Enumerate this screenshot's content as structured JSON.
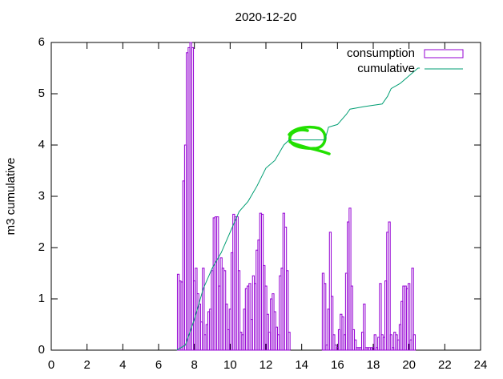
{
  "chart_data": {
    "type": "bar",
    "title": "2020-12-20",
    "ylabel": "m3 cumulative",
    "xlim": [
      0,
      24
    ],
    "xticks": [
      0,
      2,
      4,
      6,
      8,
      10,
      12,
      14,
      16,
      18,
      20,
      22,
      24
    ],
    "ylim": [
      0,
      6
    ],
    "yticks": [
      0,
      1,
      2,
      3,
      4,
      5,
      6
    ],
    "grid": false,
    "legend": "top-right",
    "series": [
      {
        "name": "consumption",
        "type": "bar",
        "color": "#9400d3",
        "x": [
          7.1,
          7.2,
          7.3,
          7.4,
          7.5,
          7.6,
          7.7,
          7.8,
          7.9,
          8.0,
          8.1,
          8.2,
          8.3,
          8.4,
          8.5,
          8.6,
          8.7,
          8.8,
          8.9,
          9.0,
          9.1,
          9.2,
          9.3,
          9.4,
          9.5,
          9.6,
          9.7,
          9.8,
          9.9,
          10.0,
          10.1,
          10.2,
          10.3,
          10.4,
          10.5,
          10.6,
          10.7,
          10.8,
          10.9,
          11.0,
          11.1,
          11.2,
          11.3,
          11.4,
          11.5,
          11.6,
          11.7,
          11.8,
          11.9,
          12.0,
          12.1,
          12.2,
          12.3,
          12.4,
          12.5,
          12.6,
          12.7,
          12.8,
          12.9,
          13.0,
          13.1,
          13.2,
          13.3,
          15.2,
          15.3,
          15.4,
          15.5,
          15.6,
          15.7,
          15.8,
          15.9,
          16.0,
          16.1,
          16.2,
          16.3,
          16.4,
          16.5,
          16.6,
          16.7,
          16.8,
          16.9,
          17.0,
          17.1,
          17.2,
          17.3,
          17.4,
          17.5,
          17.6,
          17.7,
          17.8,
          17.9,
          18.0,
          18.1,
          18.2,
          18.3,
          18.4,
          18.5,
          18.6,
          18.7,
          18.8,
          18.9,
          19.0,
          19.1,
          19.2,
          19.3,
          19.4,
          19.5,
          19.6,
          19.7,
          19.8,
          19.9,
          20.0,
          20.1,
          20.2,
          20.3
        ],
        "values": [
          1.48,
          1.35,
          1.33,
          3.3,
          4.0,
          5.8,
          5.9,
          6.0,
          5.9,
          1.35,
          1.6,
          1.1,
          0.9,
          0.55,
          1.6,
          0.3,
          0.5,
          0.75,
          0.8,
          1.55,
          2.58,
          2.6,
          2.6,
          1.25,
          1.8,
          1.6,
          1.55,
          0.9,
          0.4,
          0.8,
          1.9,
          2.65,
          2.6,
          2.6,
          1.55,
          0.35,
          0.3,
          0.8,
          1.2,
          1.25,
          1.3,
          0.6,
          1.45,
          1.3,
          1.95,
          2.15,
          2.67,
          2.65,
          1.65,
          1.25,
          0.7,
          0.35,
          1.0,
          1.1,
          0.75,
          0.45,
          0.3,
          1.45,
          1.6,
          2.67,
          2.4,
          1.55,
          0.35,
          1.5,
          1.3,
          0.1,
          0.8,
          2.3,
          1.05,
          0.3,
          0.1,
          0.05,
          0.4,
          0.7,
          0.65,
          0.3,
          1.5,
          2.5,
          2.77,
          1.25,
          0.4,
          0.2,
          0.05,
          0.05,
          0.05,
          0.35,
          0.9,
          0.05,
          0.05,
          0.05,
          0.05,
          0.05,
          0.3,
          0.05,
          0.25,
          1.3,
          0.3,
          0.25,
          1.35,
          2.3,
          2.5,
          0.3,
          0.05,
          0.35,
          0.3,
          0.2,
          0.5,
          0.95,
          1.25,
          1.25,
          1.2,
          1.3,
          0.2,
          1.6,
          0.3
        ]
      },
      {
        "name": "cumulative",
        "type": "line",
        "color": "#009e73",
        "x": [
          7.0,
          7.5,
          8.0,
          8.5,
          9.0,
          9.5,
          10.0,
          10.5,
          11.0,
          11.5,
          12.0,
          12.5,
          13.0,
          13.3,
          15.3,
          15.5,
          16.0,
          16.5,
          16.7,
          17.5,
          18.5,
          18.8,
          19.0,
          19.5,
          20.0,
          20.5,
          20.6
        ],
        "values": [
          0,
          0.1,
          0.6,
          1.2,
          1.6,
          1.9,
          2.3,
          2.7,
          2.9,
          3.2,
          3.55,
          3.7,
          4.0,
          4.1,
          4.1,
          4.35,
          4.4,
          4.6,
          4.7,
          4.75,
          4.8,
          4.95,
          5.1,
          5.2,
          5.35,
          5.5,
          5.5
        ]
      }
    ]
  }
}
